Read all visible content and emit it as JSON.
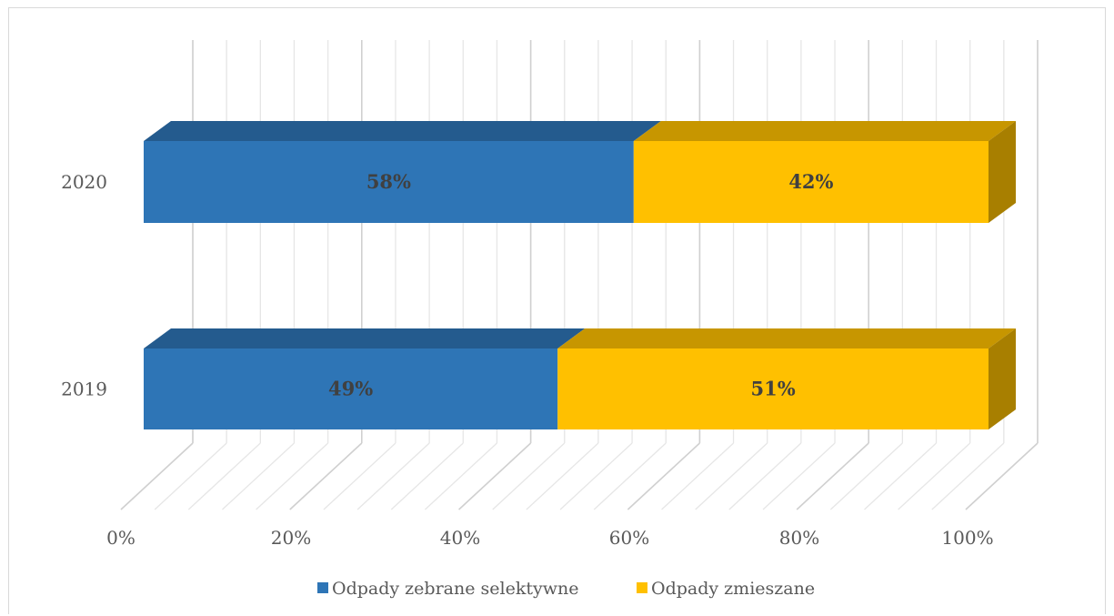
{
  "chart_data": {
    "type": "bar",
    "orientation": "horizontal",
    "stacked": "100%",
    "three_d": true,
    "categories": [
      "2019",
      "2020"
    ],
    "series": [
      {
        "name": "Odpady zebrane selektywne",
        "values": [
          49,
          58
        ],
        "labels": [
          "49%",
          "58%"
        ],
        "color": "#2e75b6"
      },
      {
        "name": "Odpady zmieszane",
        "values": [
          51,
          42
        ],
        "labels": [
          "51%",
          "42%"
        ],
        "color": "#ffc000"
      }
    ],
    "x_ticks": [
      "0%",
      "20%",
      "40%",
      "60%",
      "80%",
      "100%"
    ],
    "xlim": [
      0,
      100
    ],
    "grid": true,
    "legend_position": "bottom",
    "title": "",
    "xlabel": "",
    "ylabel": ""
  }
}
